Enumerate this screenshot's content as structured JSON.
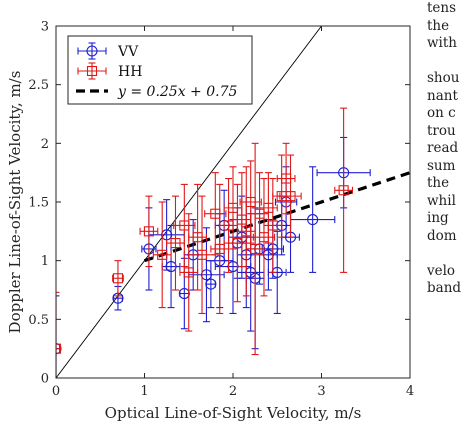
{
  "chart_data": {
    "type": "scatter",
    "xlabel": "Optical Line-of-Sight Velocity, m/s",
    "ylabel": "Doppler Line-of-Sight Velocity, m/s",
    "xlim": [
      0,
      4
    ],
    "ylim": [
      0,
      3
    ],
    "x_ticks": [
      "0",
      "1",
      "2",
      "3",
      "4"
    ],
    "y_ticks": [
      "0",
      "0.5",
      "1",
      "1.5",
      "2",
      "2.5",
      "3"
    ],
    "grid": false,
    "legend_position": "top-left",
    "reference_line": {
      "slope": 1,
      "intercept": 0
    },
    "series": [
      {
        "name": "VV",
        "color": "#1f1fd0",
        "marker": "circle",
        "points": [
          {
            "x": 0.0,
            "y": 0.25,
            "xerr": 0.04,
            "yerr": 0.45
          },
          {
            "x": 0.7,
            "y": 0.68,
            "xerr": 0.05,
            "yerr": 0.1
          },
          {
            "x": 1.05,
            "y": 1.1,
            "xerr": 0.08,
            "yerr": 0.35
          },
          {
            "x": 1.25,
            "y": 1.22,
            "xerr": 0.2,
            "yerr": 0.3
          },
          {
            "x": 1.3,
            "y": 0.95,
            "xerr": 0.1,
            "yerr": 0.35
          },
          {
            "x": 1.45,
            "y": 0.72,
            "xerr": 0.05,
            "yerr": 0.3
          },
          {
            "x": 1.55,
            "y": 1.05,
            "xerr": 0.1,
            "yerr": 0.3
          },
          {
            "x": 1.7,
            "y": 0.88,
            "xerr": 0.2,
            "yerr": 0.4
          },
          {
            "x": 1.75,
            "y": 0.8,
            "xerr": 0.05,
            "yerr": 0.2
          },
          {
            "x": 1.85,
            "y": 1.0,
            "xerr": 0.15,
            "yerr": 0.4
          },
          {
            "x": 1.9,
            "y": 1.3,
            "xerr": 0.1,
            "yerr": 0.3
          },
          {
            "x": 2.0,
            "y": 0.95,
            "xerr": 0.2,
            "yerr": 0.4
          },
          {
            "x": 2.05,
            "y": 1.15,
            "xerr": 0.1,
            "yerr": 0.3
          },
          {
            "x": 2.1,
            "y": 1.2,
            "xerr": 0.15,
            "yerr": 0.35
          },
          {
            "x": 2.15,
            "y": 1.05,
            "xerr": 0.1,
            "yerr": 0.45
          },
          {
            "x": 2.2,
            "y": 0.9,
            "xerr": 0.15,
            "yerr": 0.5
          },
          {
            "x": 2.25,
            "y": 0.85,
            "xerr": 0.1,
            "yerr": 0.6
          },
          {
            "x": 2.3,
            "y": 1.1,
            "xerr": 0.15,
            "yerr": 0.3
          },
          {
            "x": 2.4,
            "y": 1.05,
            "xerr": 0.1,
            "yerr": 0.3
          },
          {
            "x": 2.45,
            "y": 1.1,
            "xerr": 0.12,
            "yerr": 0.25
          },
          {
            "x": 2.5,
            "y": 0.9,
            "xerr": 0.1,
            "yerr": 0.35
          },
          {
            "x": 2.55,
            "y": 1.3,
            "xerr": 0.1,
            "yerr": 0.25
          },
          {
            "x": 2.6,
            "y": 1.5,
            "xerr": 0.12,
            "yerr": 0.3
          },
          {
            "x": 2.65,
            "y": 1.2,
            "xerr": 0.1,
            "yerr": 0.3
          },
          {
            "x": 2.9,
            "y": 1.35,
            "xerr": 0.25,
            "yerr": 0.45
          },
          {
            "x": 3.25,
            "y": 1.75,
            "xerr": 0.3,
            "yerr": 0.3
          }
        ]
      },
      {
        "name": "HH",
        "color": "#e01818",
        "marker": "square",
        "points": [
          {
            "x": 0.0,
            "y": 0.25,
            "xerr": 0.04,
            "yerr": 0.48
          },
          {
            "x": 0.7,
            "y": 0.85,
            "xerr": 0.06,
            "yerr": 0.15
          },
          {
            "x": 1.05,
            "y": 1.25,
            "xerr": 0.1,
            "yerr": 0.3
          },
          {
            "x": 1.2,
            "y": 1.05,
            "xerr": 0.1,
            "yerr": 0.45
          },
          {
            "x": 1.35,
            "y": 1.15,
            "xerr": 0.1,
            "yerr": 0.4
          },
          {
            "x": 1.45,
            "y": 1.3,
            "xerr": 0.12,
            "yerr": 0.35
          },
          {
            "x": 1.5,
            "y": 0.9,
            "xerr": 0.1,
            "yerr": 0.5
          },
          {
            "x": 1.6,
            "y": 1.2,
            "xerr": 0.1,
            "yerr": 0.45
          },
          {
            "x": 1.65,
            "y": 1.05,
            "xerr": 0.15,
            "yerr": 0.5
          },
          {
            "x": 1.8,
            "y": 1.4,
            "xerr": 0.12,
            "yerr": 0.35
          },
          {
            "x": 1.85,
            "y": 1.1,
            "xerr": 0.1,
            "yerr": 0.55
          },
          {
            "x": 1.95,
            "y": 1.3,
            "xerr": 0.1,
            "yerr": 0.4
          },
          {
            "x": 2.0,
            "y": 1.45,
            "xerr": 0.1,
            "yerr": 0.35
          },
          {
            "x": 2.05,
            "y": 1.15,
            "xerr": 0.15,
            "yerr": 0.5
          },
          {
            "x": 2.1,
            "y": 1.35,
            "xerr": 0.1,
            "yerr": 0.4
          },
          {
            "x": 2.15,
            "y": 1.25,
            "xerr": 0.1,
            "yerr": 0.55
          },
          {
            "x": 2.2,
            "y": 1.5,
            "xerr": 0.12,
            "yerr": 0.35
          },
          {
            "x": 2.25,
            "y": 1.1,
            "xerr": 0.1,
            "yerr": 0.9
          },
          {
            "x": 2.3,
            "y": 1.4,
            "xerr": 0.1,
            "yerr": 0.35
          },
          {
            "x": 2.35,
            "y": 1.2,
            "xerr": 0.12,
            "yerr": 0.5
          },
          {
            "x": 2.4,
            "y": 1.45,
            "xerr": 0.1,
            "yerr": 0.3
          },
          {
            "x": 2.45,
            "y": 1.3,
            "xerr": 0.1,
            "yerr": 0.4
          },
          {
            "x": 2.55,
            "y": 1.55,
            "xerr": 0.1,
            "yerr": 0.35
          },
          {
            "x": 2.6,
            "y": 1.7,
            "xerr": 0.1,
            "yerr": 0.3
          },
          {
            "x": 2.65,
            "y": 1.55,
            "xerr": 0.12,
            "yerr": 0.35
          },
          {
            "x": 3.25,
            "y": 1.6,
            "xerr": 0.1,
            "yerr": 0.7
          }
        ]
      },
      {
        "name": "y = 0.25x + 0.75",
        "type": "line",
        "style": "dashed",
        "color": "#000000",
        "slope": 0.25,
        "intercept": 0.75,
        "x_range": [
          1.0,
          4.0
        ]
      }
    ]
  },
  "side_text": {
    "lines": [
      "tens",
      "the",
      "with",
      "",
      "shou",
      "nant",
      "on c",
      "trou",
      "read",
      "sum",
      "the",
      "whil",
      "ing",
      "dom",
      "",
      "velo",
      "band",
      "",
      "",
      "",
      "",
      "",
      ""
    ]
  }
}
